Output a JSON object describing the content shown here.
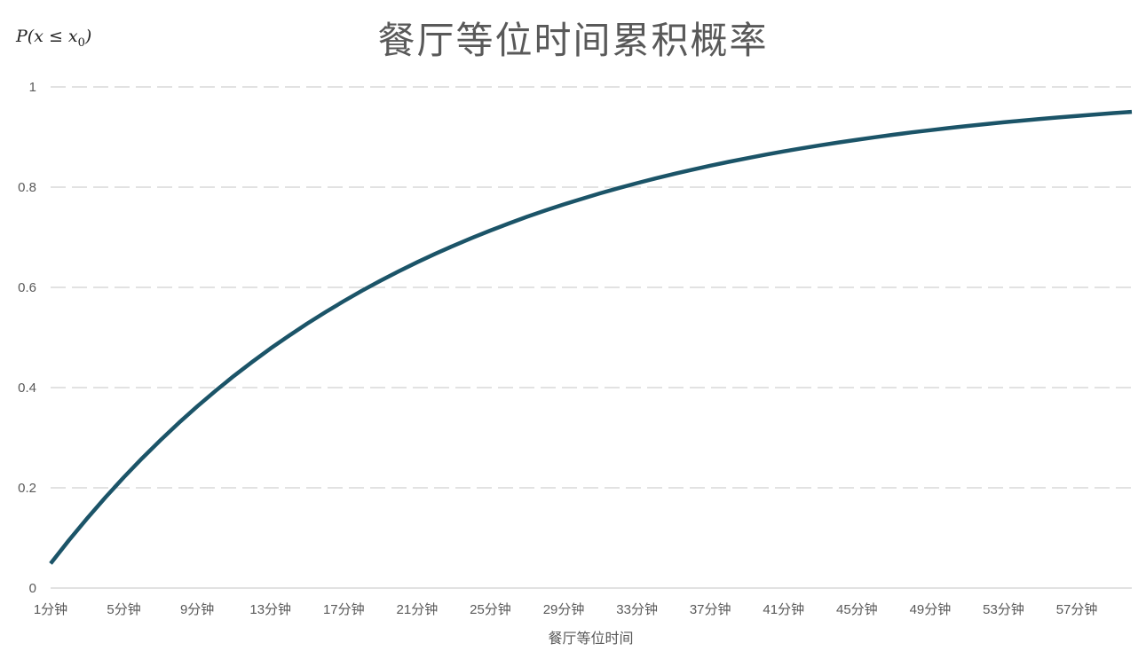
{
  "chart_data": {
    "type": "line",
    "title": "餐厅等位时间累积概率",
    "xlabel": "餐厅等位时间",
    "ylabel": "P(x ≤ x0)",
    "ylabel_parts": {
      "main": "P(x ≤ x",
      "sub": "0",
      "close": ")"
    },
    "ylim": [
      0,
      1
    ],
    "y_ticks": [
      "0",
      "0.2",
      "0.4",
      "0.6",
      "0.8",
      "1"
    ],
    "grid": "horizontal dashed",
    "x": [
      1,
      2,
      3,
      4,
      5,
      6,
      7,
      8,
      9,
      10,
      11,
      12,
      13,
      14,
      15,
      16,
      17,
      18,
      19,
      20,
      21,
      22,
      23,
      24,
      25,
      26,
      27,
      28,
      29,
      30,
      31,
      32,
      33,
      34,
      35,
      36,
      37,
      38,
      39,
      40,
      41,
      42,
      43,
      44,
      45,
      46,
      47,
      48,
      49,
      50,
      51,
      52,
      53,
      54,
      55,
      56,
      57,
      58,
      59,
      60
    ],
    "x_tick_labels": [
      "1分钟",
      "5分钟",
      "9分钟",
      "13分钟",
      "17分钟",
      "21分钟",
      "25分钟",
      "29分钟",
      "33分钟",
      "37分钟",
      "41分钟",
      "45分钟",
      "49分钟",
      "53分钟",
      "57分钟"
    ],
    "series": [
      {
        "color": "#1B5468",
        "values": [
          0.0488,
          0.0952,
          0.1393,
          0.1813,
          0.2212,
          0.2592,
          0.2953,
          0.3297,
          0.3624,
          0.3935,
          0.4231,
          0.4512,
          0.478,
          0.5034,
          0.5276,
          0.5507,
          0.5726,
          0.5934,
          0.6133,
          0.6321,
          0.6501,
          0.6671,
          0.6834,
          0.6988,
          0.7135,
          0.7275,
          0.7408,
          0.7534,
          0.7654,
          0.7769,
          0.7878,
          0.7981,
          0.808,
          0.8173,
          0.8262,
          0.8347,
          0.8428,
          0.8504,
          0.8577,
          0.8647,
          0.8713,
          0.8775,
          0.8835,
          0.8892,
          0.8946,
          0.8997,
          0.9046,
          0.9093,
          0.9137,
          0.9179,
          0.9219,
          0.9257,
          0.9293,
          0.9328,
          0.9361,
          0.9392,
          0.9422,
          0.945,
          0.9477,
          0.9502
        ]
      }
    ]
  }
}
